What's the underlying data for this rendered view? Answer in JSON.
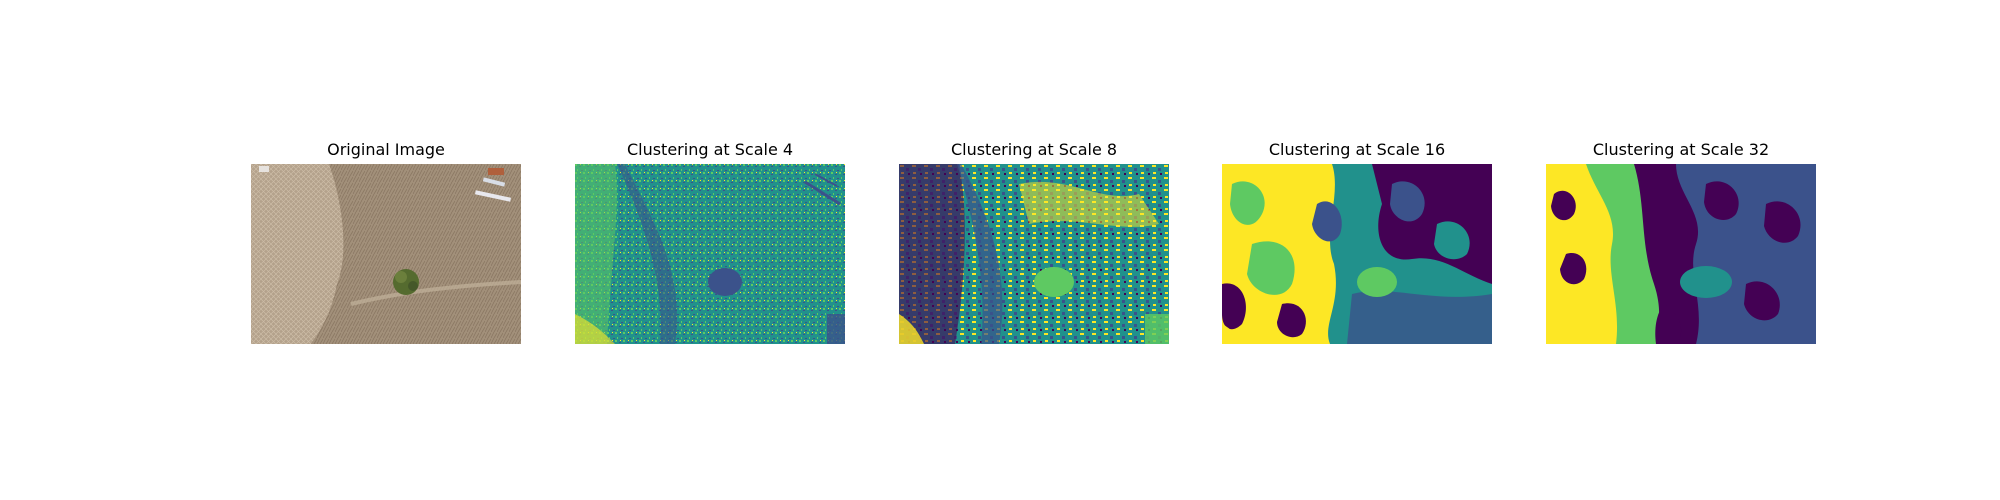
{
  "figure": {
    "panels": [
      {
        "title": "Original Image",
        "kind": "photo"
      },
      {
        "title": "Clustering at Scale 4",
        "kind": "clusters",
        "scale": 4
      },
      {
        "title": "Clustering at Scale 8",
        "kind": "clusters",
        "scale": 8
      },
      {
        "title": "Clustering at Scale 16",
        "kind": "clusters",
        "scale": 16
      },
      {
        "title": "Clustering at Scale 32",
        "kind": "clusters",
        "scale": 32
      }
    ],
    "cluster_colors": [
      "#440154",
      "#3b528b",
      "#21918c",
      "#5ec962",
      "#fde725"
    ]
  }
}
